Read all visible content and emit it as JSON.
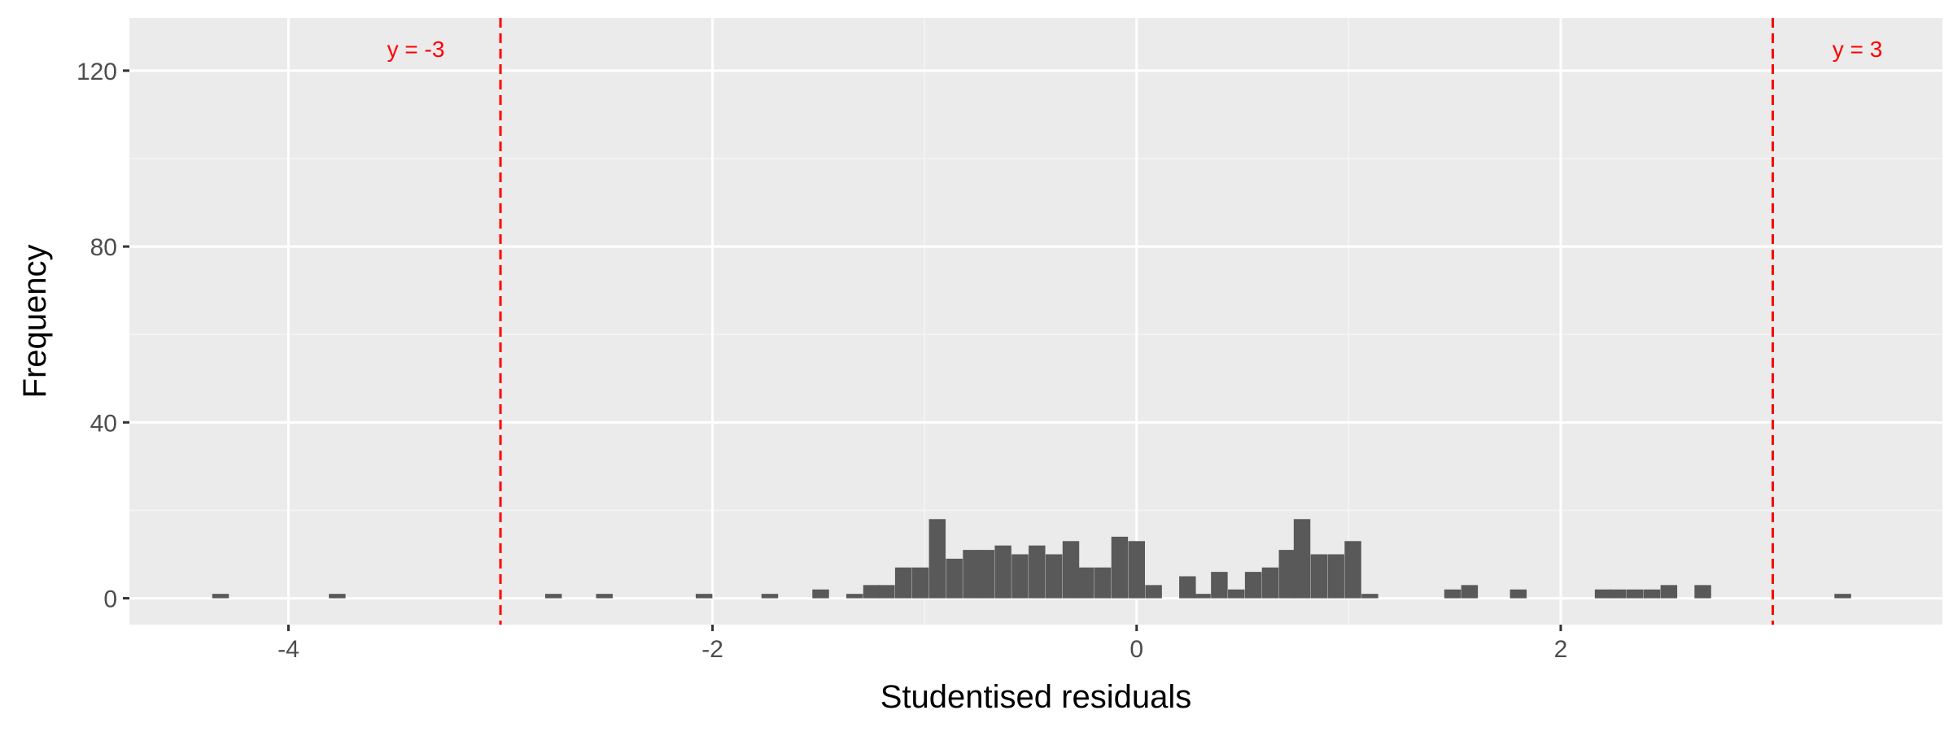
{
  "chart_data": {
    "type": "bar",
    "title": "",
    "xlabel": "Studentised residuals",
    "ylabel": "Frequency",
    "xlim": [
      -4.75,
      3.8
    ],
    "ylim": [
      -6,
      132
    ],
    "x_ticks": [
      {
        "value": -4,
        "label": "-4"
      },
      {
        "value": -2,
        "label": "-2"
      },
      {
        "value": 0,
        "label": "0"
      },
      {
        "value": 2,
        "label": "2"
      }
    ],
    "y_ticks": [
      {
        "value": 0,
        "label": "0"
      },
      {
        "value": 40,
        "label": "40"
      },
      {
        "value": 80,
        "label": "80"
      },
      {
        "value": 120,
        "label": "120"
      }
    ],
    "grid": true,
    "bin_width": 0.0785,
    "bins": [
      {
        "x": -4.32,
        "count": 1
      },
      {
        "x": -3.77,
        "count": 1
      },
      {
        "x": -2.75,
        "count": 1
      },
      {
        "x": -2.51,
        "count": 1
      },
      {
        "x": -2.04,
        "count": 1
      },
      {
        "x": -1.73,
        "count": 1
      },
      {
        "x": -1.49,
        "count": 2
      },
      {
        "x": -1.33,
        "count": 1
      },
      {
        "x": -1.25,
        "count": 3
      },
      {
        "x": -1.18,
        "count": 3
      },
      {
        "x": -1.1,
        "count": 7
      },
      {
        "x": -1.02,
        "count": 7
      },
      {
        "x": -0.94,
        "count": 18
      },
      {
        "x": -0.86,
        "count": 9
      },
      {
        "x": -0.78,
        "count": 11
      },
      {
        "x": -0.71,
        "count": 11
      },
      {
        "x": -0.63,
        "count": 12
      },
      {
        "x": -0.55,
        "count": 10
      },
      {
        "x": -0.47,
        "count": 12
      },
      {
        "x": -0.39,
        "count": 10
      },
      {
        "x": -0.31,
        "count": 13
      },
      {
        "x": -0.24,
        "count": 7
      },
      {
        "x": -0.16,
        "count": 7
      },
      {
        "x": -0.08,
        "count": 14
      },
      {
        "x": 0.0,
        "count": 13
      },
      {
        "x": 0.08,
        "count": 3
      },
      {
        "x": 0.24,
        "count": 5
      },
      {
        "x": 0.31,
        "count": 1
      },
      {
        "x": 0.39,
        "count": 6
      },
      {
        "x": 0.47,
        "count": 2
      },
      {
        "x": 0.55,
        "count": 6
      },
      {
        "x": 0.63,
        "count": 7
      },
      {
        "x": 0.71,
        "count": 11
      },
      {
        "x": 0.78,
        "count": 18
      },
      {
        "x": 0.86,
        "count": 10
      },
      {
        "x": 0.94,
        "count": 10
      },
      {
        "x": 1.02,
        "count": 13
      },
      {
        "x": 1.1,
        "count": 1
      },
      {
        "x": 1.49,
        "count": 2
      },
      {
        "x": 1.57,
        "count": 3
      },
      {
        "x": 1.8,
        "count": 2
      },
      {
        "x": 2.2,
        "count": 2
      },
      {
        "x": 2.27,
        "count": 2
      },
      {
        "x": 2.35,
        "count": 2
      },
      {
        "x": 2.43,
        "count": 2
      },
      {
        "x": 2.51,
        "count": 3
      },
      {
        "x": 2.67,
        "count": 3
      },
      {
        "x": 3.33,
        "count": 1
      }
    ],
    "reference_lines": [
      {
        "value": -3,
        "label": "y = -3",
        "color": "#ff0000"
      },
      {
        "value": 3,
        "label": "y = 3",
        "color": "#ff0000"
      }
    ],
    "colors": {
      "panel_background": "#ebebeb",
      "major_grid": "#ffffff",
      "minor_grid": "#f5f5f5",
      "bar_fill": "#595959",
      "tick_text": "#4d4d4d",
      "axis_ticks": "#333333"
    }
  }
}
